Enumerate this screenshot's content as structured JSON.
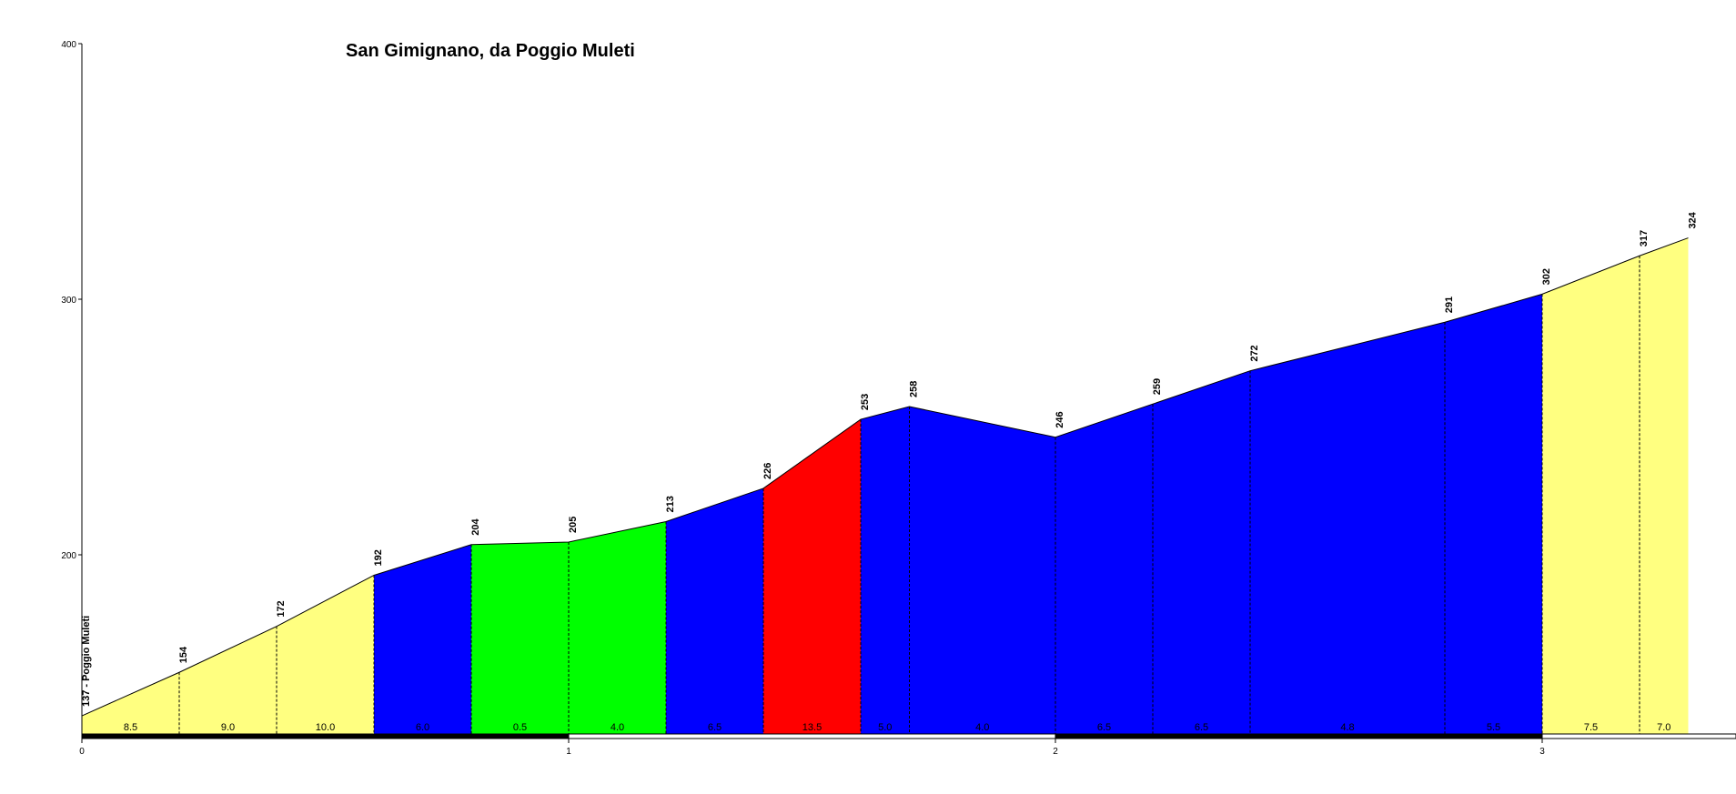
{
  "chart_data": {
    "type": "area",
    "title": "San Gimignano, da Poggio Muleti",
    "xlabel": "",
    "ylabel": "",
    "xlim": [
      0,
      3.5
    ],
    "ylim": [
      130,
      400
    ],
    "x_ticks": [
      0,
      1,
      2,
      3
    ],
    "y_ticks": [
      200,
      300,
      400
    ],
    "start_label": "137 - Poggio Muleti",
    "points": [
      {
        "x": 0.0,
        "y": 137,
        "label": "137 - Poggio Muleti"
      },
      {
        "x": 0.2,
        "y": 154,
        "label": "154"
      },
      {
        "x": 0.4,
        "y": 172,
        "label": "172"
      },
      {
        "x": 0.6,
        "y": 192,
        "label": "192"
      },
      {
        "x": 0.8,
        "y": 204,
        "label": "204"
      },
      {
        "x": 1.0,
        "y": 205,
        "label": "205"
      },
      {
        "x": 1.2,
        "y": 213,
        "label": "213"
      },
      {
        "x": 1.4,
        "y": 226,
        "label": "226"
      },
      {
        "x": 1.6,
        "y": 253,
        "label": "253"
      },
      {
        "x": 1.7,
        "y": 258,
        "label": "258"
      },
      {
        "x": 2.0,
        "y": 246,
        "label": "246"
      },
      {
        "x": 2.2,
        "y": 259,
        "label": "259"
      },
      {
        "x": 2.4,
        "y": 272,
        "label": "272"
      },
      {
        "x": 2.8,
        "y": 291,
        "label": "291"
      },
      {
        "x": 3.0,
        "y": 302,
        "label": "302"
      },
      {
        "x": 3.2,
        "y": 317,
        "label": "317"
      },
      {
        "x": 3.3,
        "y": 324,
        "label": "324"
      }
    ],
    "segments": [
      {
        "grade": "8.5",
        "color": "#ffff80"
      },
      {
        "grade": "9.0",
        "color": "#ffff80"
      },
      {
        "grade": "10.0",
        "color": "#ffff80"
      },
      {
        "grade": "6.0",
        "color": "#0000ff"
      },
      {
        "grade": "0.5",
        "color": "#00ff00"
      },
      {
        "grade": "4.0",
        "color": "#00ff00"
      },
      {
        "grade": "6.5",
        "color": "#0000ff"
      },
      {
        "grade": "13.5",
        "color": "#ff0000"
      },
      {
        "grade": "5.0",
        "color": "#0000ff"
      },
      {
        "grade": "4.0",
        "color": "#0000ff"
      },
      {
        "grade": "6.5",
        "color": "#0000ff"
      },
      {
        "grade": "6.5",
        "color": "#0000ff"
      },
      {
        "grade": "4.8",
        "color": "#0000ff"
      },
      {
        "grade": "5.5",
        "color": "#0000ff"
      },
      {
        "grade": "7.5",
        "color": "#ffff80"
      },
      {
        "grade": "7.0",
        "color": "#ffff80"
      }
    ],
    "grid": false,
    "legend": "none"
  }
}
